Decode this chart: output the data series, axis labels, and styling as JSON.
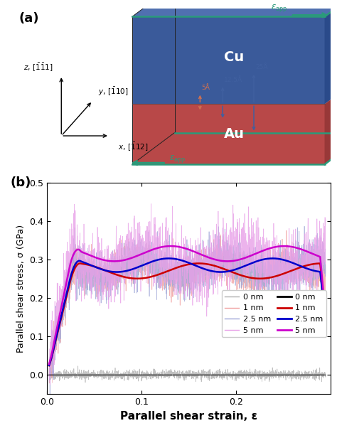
{
  "panel_a_label": "(a)",
  "panel_b_label": "(b)",
  "cu_color_front": "#3a5a9a",
  "cu_color_top": "#5070b0",
  "cu_color_right": "#2a4a8a",
  "au_color_front": "#b84848",
  "au_color_top": "#c85858",
  "au_color_right": "#983838",
  "edge_color": "#2a9a7a",
  "xlabel": "Parallel shear strain, ε",
  "ylabel": "Parallel shear stress, σ (GPa)",
  "xlim": [
    0.0,
    0.3
  ],
  "ylim": [
    -0.05,
    0.5
  ],
  "xticks": [
    0.0,
    0.1,
    0.2
  ],
  "yticks": [
    0.0,
    0.1,
    0.2,
    0.3,
    0.4,
    0.5
  ],
  "legend_thin_labels": [
    "0 nm",
    "1 nm",
    "2.5 nm",
    "5 nm"
  ],
  "legend_thick_labels": [
    "0 nm",
    "1 nm",
    "2.5 nm",
    "5 nm"
  ],
  "thin_colors": [
    "#b0b0b0",
    "#f0a0a0",
    "#a0a8d8",
    "#e8a0e8"
  ],
  "thick_colors": [
    "#000000",
    "#cc0000",
    "#0000cc",
    "#cc00cc"
  ],
  "arrow_color_orange": "#d07050",
  "arrow_color_blue": "#4060a0",
  "epsilon_app_color": "#2a9a7a"
}
